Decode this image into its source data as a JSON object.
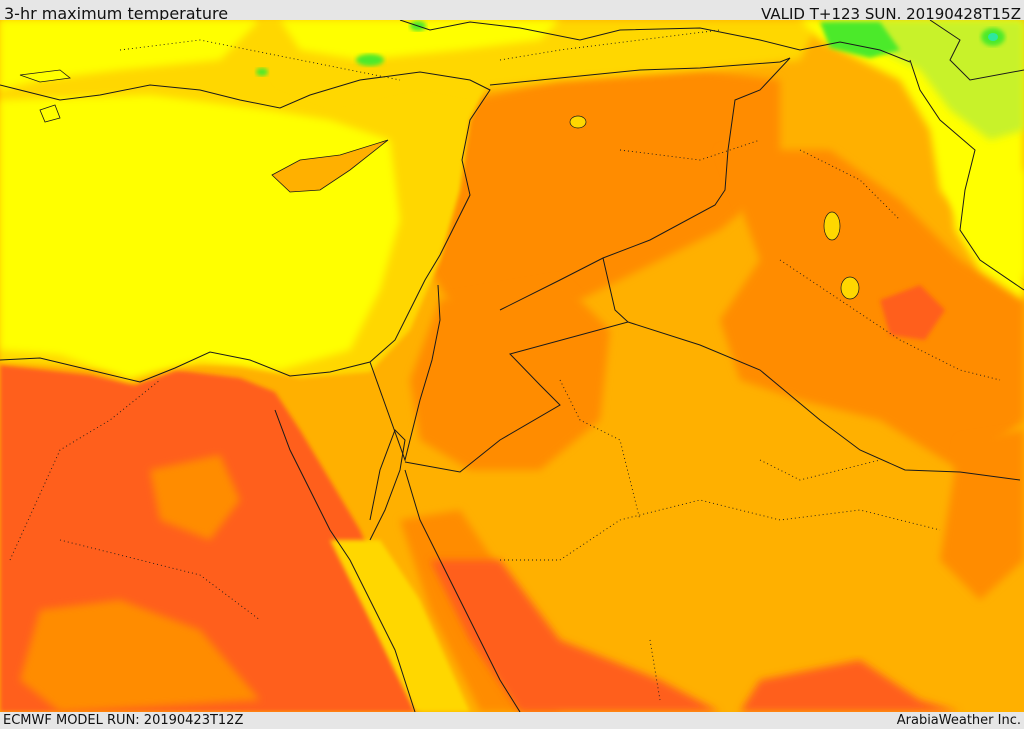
{
  "header": {
    "title": "3-hr maximum temperature",
    "valid_time": "VALID T+123 SUN. 20190428T15Z"
  },
  "footer": {
    "model_run": "ECMWF MODEL RUN: 20190423T12Z",
    "credit": "ArabiaWeather Inc."
  },
  "colors": {
    "cool_green": "#4bea2a",
    "mild_yellow_green": "#c8f22a",
    "warm_yellow": "#ffff00",
    "gold": "#ffd700",
    "light_orange": "#ffb000",
    "orange": "#ff8c00",
    "red_orange": "#ff5e1a",
    "border_line": "#1a1a1a"
  }
}
